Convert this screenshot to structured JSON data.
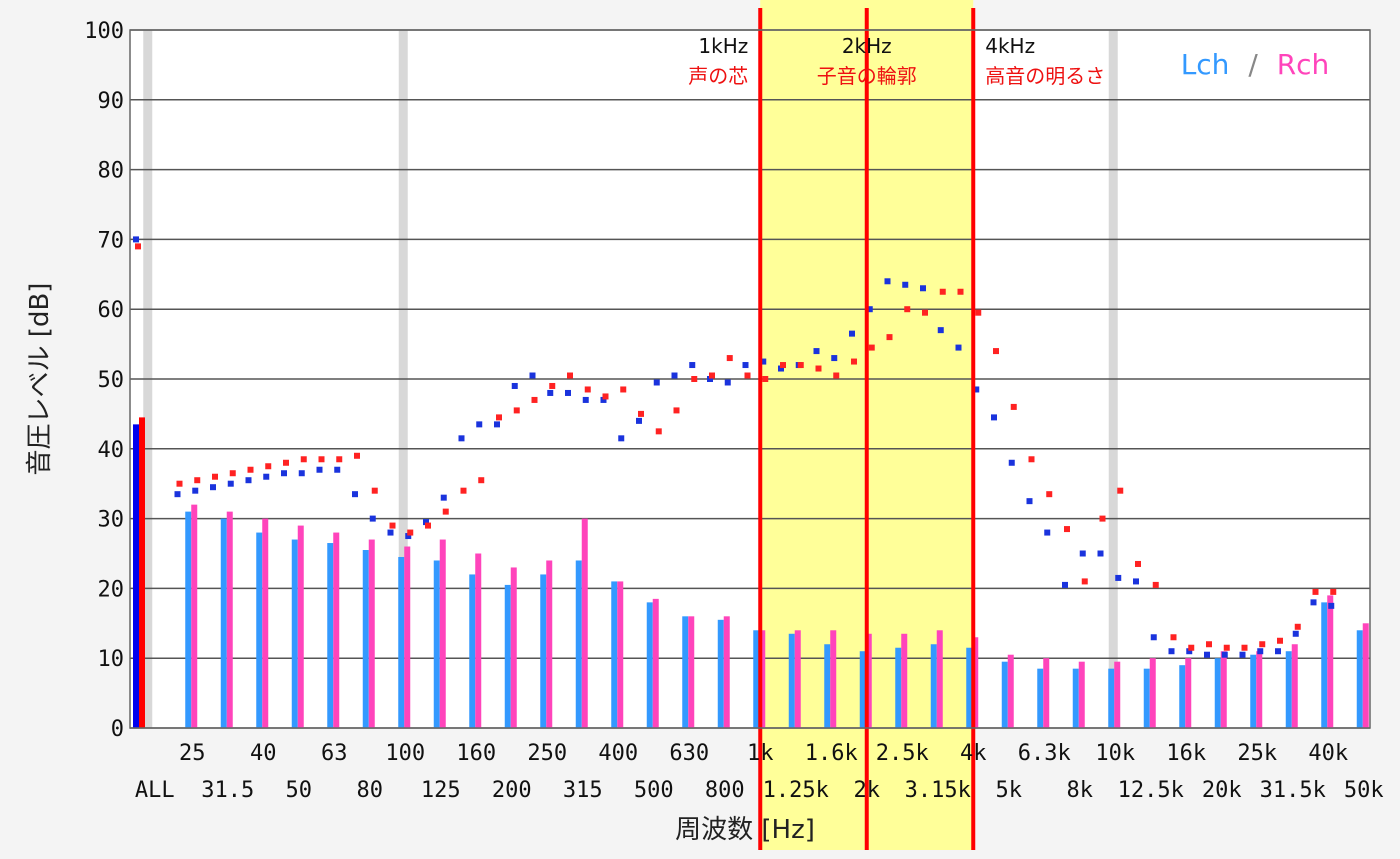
{
  "chart_data": {
    "type": "bar",
    "ylabel": "音圧レベル [dB]",
    "xlabel": "周波数 [Hz]",
    "ylim": [
      0,
      100
    ],
    "yticks": [
      0,
      10,
      20,
      30,
      40,
      50,
      60,
      70,
      80,
      90,
      100
    ],
    "grid": true,
    "legend": {
      "placement": "top-right",
      "lch": "Lch",
      "sep": "/",
      "rch": "Rch"
    },
    "colors": {
      "lch": "#3399ff",
      "rch": "#ff44bb",
      "dotL": "#1a33dd",
      "dotR": "#ff2222",
      "all_l": "#0000ee",
      "all_r": "#ff0000",
      "band": "#ffff99",
      "marker": "#ff0000"
    },
    "categories": [
      "ALL",
      "25",
      "31.5",
      "40",
      "50",
      "63",
      "80",
      "100",
      "125",
      "160",
      "200",
      "250",
      "315",
      "400",
      "500",
      "630",
      "800",
      "1k",
      "1.25k",
      "1.6k",
      "2k",
      "2.5k",
      "3.15k",
      "4k",
      "5k",
      "6.3k",
      "8k",
      "10k",
      "12.5k",
      "16k",
      "20k",
      "25k",
      "31.5k",
      "40k",
      "50k"
    ],
    "tick_top": [
      "",
      "25",
      "",
      "40",
      "",
      "63",
      "",
      "100",
      "",
      "160",
      "",
      "250",
      "",
      "400",
      "",
      "630",
      "",
      "1k",
      "",
      "1.6k",
      "",
      "2.5k",
      "",
      "4k",
      "",
      "6.3k",
      "",
      "10k",
      "",
      "16k",
      "",
      "25k",
      "",
      "40k",
      ""
    ],
    "tick_bottom": [
      "ALL",
      "",
      "31.5",
      "",
      "50",
      "",
      "80",
      "",
      "125",
      "",
      "200",
      "",
      "315",
      "",
      "500",
      "",
      "800",
      "",
      "1.25k",
      "",
      "2k",
      "",
      "3.15k",
      "",
      "5k",
      "",
      "8k",
      "",
      "12.5k",
      "",
      "20k",
      "",
      "31.5k",
      "",
      "50k"
    ],
    "series": [
      {
        "name": "Lch",
        "values": [
          43.5,
          31,
          30,
          28,
          27,
          26.5,
          25.5,
          24.5,
          24,
          22,
          20.5,
          22,
          24,
          21,
          18,
          16,
          15.5,
          14,
          13.5,
          12,
          11,
          11.5,
          12,
          11.5,
          9.5,
          8.5,
          8.5,
          8.5,
          8.5,
          9,
          10,
          10.5,
          11,
          18,
          14
        ]
      },
      {
        "name": "Rch",
        "values": [
          44.5,
          32,
          31,
          30,
          29,
          28,
          27,
          26,
          27,
          25,
          23,
          24,
          30,
          21,
          18.5,
          16,
          16,
          14,
          14,
          14,
          13.5,
          13.5,
          14,
          13,
          10.5,
          10,
          9.5,
          9.5,
          10,
          10,
          11,
          11,
          12,
          19,
          15
        ]
      }
    ],
    "dots": {
      "lch": [
        70,
        33.5,
        34,
        34.5,
        35,
        35.5,
        36,
        36.5,
        36.5,
        37,
        37,
        33.5,
        30,
        28,
        27.5,
        29.5,
        33,
        41.5,
        43.5,
        43.5,
        49,
        50.5,
        48,
        48,
        47,
        47,
        41.5,
        44,
        49.5,
        50.5,
        52,
        50,
        49.5,
        52,
        52.5,
        51.5,
        52,
        54,
        53,
        56.5,
        60,
        64,
        63.5,
        63,
        57,
        54.5,
        48.5,
        44.5,
        38,
        32.5,
        28,
        20.5,
        25,
        25,
        21.5,
        21,
        13,
        11,
        11,
        10.5,
        10.5,
        10.5,
        11,
        11,
        13.5,
        18,
        17.5
      ],
      "rch": [
        69,
        35,
        35.5,
        36,
        36.5,
        37,
        37.5,
        38,
        38.5,
        38.5,
        38.5,
        39,
        34,
        29,
        28,
        29,
        31,
        34,
        35.5,
        44.5,
        45.5,
        47,
        49,
        50.5,
        48.5,
        47.5,
        48.5,
        45,
        42.5,
        45.5,
        50,
        50.5,
        53,
        50.5,
        50,
        52,
        52,
        51.5,
        50.5,
        52.5,
        54.5,
        56,
        60,
        59.5,
        62.5,
        62.5,
        59.5,
        54,
        46,
        38.5,
        33.5,
        28.5,
        21,
        30,
        34,
        23.5,
        20.5,
        13,
        11.5,
        12,
        11.5,
        11.5,
        12,
        12.5,
        14.5,
        19.5,
        19.5
      ]
    },
    "band_regions": [
      {
        "from": "1k",
        "to": "4k"
      }
    ],
    "markers": [
      {
        "at": "1k",
        "freq": "1kHz",
        "desc": "声の芯"
      },
      {
        "at": "2k",
        "freq": "2kHz",
        "desc": "子音の輪郭"
      },
      {
        "at": "4k",
        "freq": "4kHz",
        "desc": "高音の明るさ"
      }
    ]
  }
}
